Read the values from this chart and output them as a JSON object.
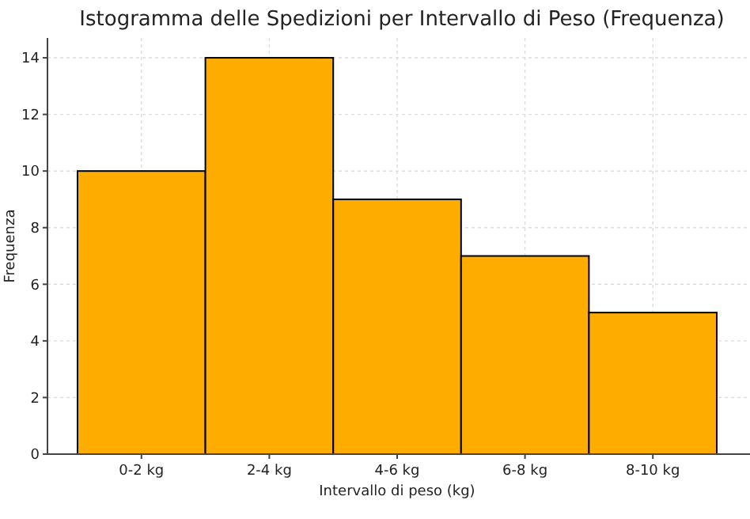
{
  "chart_data": {
    "type": "bar",
    "title": "Istogramma delle Spedizioni per Intervallo di Peso (Frequenza)",
    "xlabel": "Intervallo di peso (kg)",
    "ylabel": "Frequenza",
    "categories": [
      "0-2 kg",
      "2-4 kg",
      "4-6 kg",
      "6-8 kg",
      "8-10 kg"
    ],
    "values": [
      10,
      14,
      9,
      7,
      5
    ],
    "color": "#ffac00",
    "ylim": [
      0,
      14.7
    ],
    "yticks": [
      0,
      2,
      4,
      6,
      8,
      10,
      12,
      14
    ],
    "grid": true
  }
}
